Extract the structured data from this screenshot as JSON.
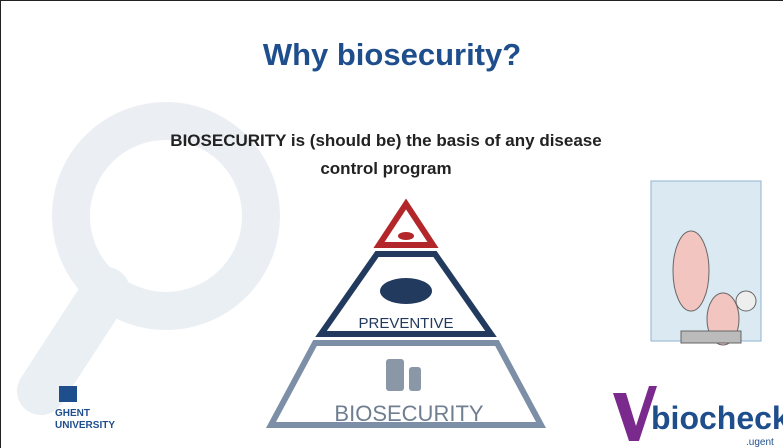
{
  "slide": {
    "title": "Why biosecurity?",
    "subtitle_lines": [
      "BIOSECURITY is (should be) the basis of any disease",
      "control program"
    ],
    "pyramid": {
      "middle": "PREVENTIVE",
      "bottom": "BIOSECURITY"
    },
    "logos": {
      "ghent": [
        "GHENT",
        "UNIVERSITY"
      ],
      "biocheck": "biocheck",
      "biocheck_domain": ".ugent"
    }
  }
}
